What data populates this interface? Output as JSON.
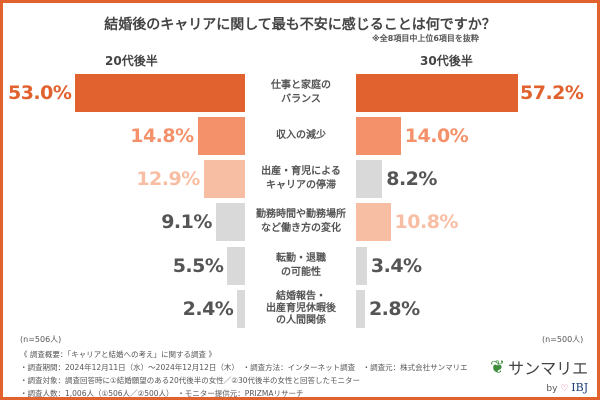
{
  "chart_data": {
    "type": "bar",
    "title": "結婚後のキャリアに関して最も不安に感じることは何ですか？",
    "subtitle": "※全8項目中上位6項目を抜粋",
    "categories": [
      "仕事と家庭の\nバランス",
      "収入の減少",
      "出産・育児による\nキャリアの停滞",
      "勤務時間や勤務場所\nなど働き方の変化",
      "転勤・退職\nの可能性",
      "結婚報告・\n出産育児休暇後\nの人間関係"
    ],
    "series": [
      {
        "name": "20代後半",
        "values": [
          53.0,
          14.8,
          12.9,
          9.1,
          5.5,
          2.4
        ],
        "labels": [
          "53.0%",
          "14.8%",
          "12.9%",
          "9.1%",
          "5.5%",
          "2.4%"
        ],
        "colors": [
          "#E2622F",
          "#F4916A",
          "#F8BEA4",
          "#D9D9D9",
          "#D9D9D9",
          "#D9D9D9"
        ],
        "n": "(n=506人)"
      },
      {
        "name": "30代後半",
        "values": [
          57.2,
          14.0,
          8.2,
          10.8,
          3.4,
          2.8
        ],
        "labels": [
          "57.2%",
          "14.0%",
          "8.2%",
          "10.8%",
          "3.4%",
          "2.8%"
        ],
        "colors": [
          "#E2622F",
          "#F4916A",
          "#D9D9D9",
          "#F8BEA4",
          "#D9D9D9",
          "#D9D9D9"
        ],
        "n": "(n=500人)"
      }
    ]
  },
  "footer": {
    "l1": "《 調査概要：「キャリアと結婚への考え」に関する調査 》",
    "l2": "・調査期間：2024年12月11日（水）〜2024年12月12日（木）　・調査方法：インターネット調査　・調査元：株式会社サンマリエ",
    "l3": "・調査対象：調査回答時に①結婚願望のある20代後半の女性／②30代後半の女性と回答したモニター",
    "l4": "・調査人数：1,006人（①506人／②500人）　・モニター提供元：PRIZMAリサーチ"
  },
  "logo": {
    "name": "サンマリエ",
    "by": "by",
    "brand": "IBJ"
  }
}
